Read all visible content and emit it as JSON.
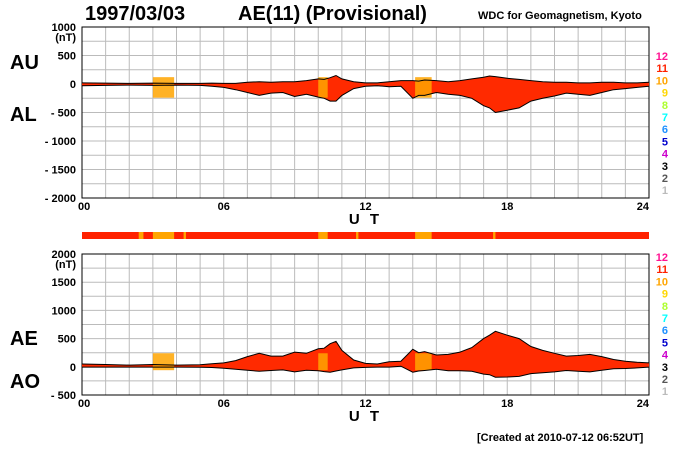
{
  "header": {
    "date": "1997/03/03",
    "title": "AE(11) (Provisional)",
    "source": "WDC for Geomagnetism, Kyoto"
  },
  "footer": {
    "created": "[Created at 2010-07-12 06:52UT]"
  },
  "legend_colors": {
    "12": "#ff1493",
    "11": "#ff2200",
    "10": "#ffa500",
    "9": "#ffd700",
    "8": "#adff2f",
    "7": "#00ffff",
    "6": "#1e90ff",
    "5": "#0000cd",
    "4": "#cc00cc",
    "3": "#000000",
    "2": "#555555",
    "1": "#bbbbbb"
  },
  "station_bar": {
    "default": 11,
    "segments": [
      {
        "start": 2.4,
        "end": 2.6,
        "stations": 10
      },
      {
        "start": 3.0,
        "end": 3.9,
        "stations": 10
      },
      {
        "start": 4.3,
        "end": 4.4,
        "stations": 10
      },
      {
        "start": 10.0,
        "end": 10.4,
        "stations": 10
      },
      {
        "start": 11.6,
        "end": 11.7,
        "stations": 10
      },
      {
        "start": 14.1,
        "end": 14.8,
        "stations": 10
      },
      {
        "start": 17.4,
        "end": 17.5,
        "stations": 10
      }
    ]
  },
  "chart_data": [
    {
      "type": "area",
      "panel": "top",
      "side_labels": [
        "AU",
        "AL"
      ],
      "xlabel": "U T",
      "ylabel": "(nT)",
      "xlim": [
        0,
        24
      ],
      "ylim": [
        -2000,
        1000
      ],
      "xticks": [
        0,
        6,
        12,
        18,
        24
      ],
      "xtick_labels": [
        "00",
        "06",
        "12",
        "18",
        "24"
      ],
      "yticks": [
        1000,
        500,
        0,
        -500,
        -1000,
        -1500,
        -2000
      ],
      "ytick_labels": [
        "1000",
        "500",
        "0",
        "- 500",
        "- 1000",
        "- 1500",
        "- 2000"
      ],
      "legend": [
        "12",
        "11",
        "10",
        "9",
        "8",
        "7",
        "6",
        "5",
        "4",
        "3",
        "2",
        "1"
      ],
      "x": [
        0,
        1,
        2,
        3,
        4,
        5,
        5.5,
        6,
        6.5,
        7,
        7.5,
        8,
        8.5,
        9,
        9.5,
        10,
        10.25,
        10.5,
        10.75,
        11,
        11.5,
        12,
        12.5,
        13,
        13.5,
        14,
        14.25,
        14.5,
        15,
        15.5,
        16,
        16.5,
        17,
        17.25,
        17.5,
        18,
        18.5,
        19,
        19.5,
        20,
        20.5,
        21,
        21.5,
        22,
        22.5,
        23,
        23.5,
        24
      ],
      "series": [
        {
          "name": "AU",
          "values": [
            20,
            15,
            10,
            15,
            10,
            10,
            15,
            10,
            10,
            30,
            40,
            30,
            40,
            40,
            60,
            90,
            80,
            110,
            150,
            90,
            40,
            20,
            20,
            40,
            60,
            60,
            50,
            70,
            60,
            40,
            60,
            90,
            120,
            140,
            130,
            100,
            80,
            60,
            40,
            30,
            30,
            20,
            20,
            30,
            30,
            20,
            20,
            30
          ]
        },
        {
          "name": "AL",
          "values": [
            -30,
            -25,
            -20,
            -25,
            -20,
            -25,
            -40,
            -60,
            -100,
            -150,
            -200,
            -160,
            -150,
            -220,
            -180,
            -230,
            -250,
            -300,
            -300,
            -200,
            -80,
            -40,
            -30,
            -50,
            -40,
            -250,
            -200,
            -200,
            -150,
            -180,
            -200,
            -250,
            -380,
            -420,
            -500,
            -460,
            -420,
            -300,
            -250,
            -210,
            -160,
            -180,
            -200,
            -150,
            -100,
            -80,
            -60,
            -40
          ]
        }
      ]
    },
    {
      "type": "area",
      "panel": "bottom",
      "side_labels": [
        "AE",
        "AO"
      ],
      "xlabel": "U T",
      "ylabel": "(nT)",
      "xlim": [
        0,
        24
      ],
      "ylim": [
        -500,
        2000
      ],
      "xticks": [
        0,
        6,
        12,
        18,
        24
      ],
      "xtick_labels": [
        "00",
        "06",
        "12",
        "18",
        "24"
      ],
      "yticks": [
        2000,
        1500,
        1000,
        500,
        0,
        -500
      ],
      "ytick_labels": [
        "2000",
        "1500",
        "1000",
        "500",
        "0",
        "- 500"
      ],
      "legend": [
        "12",
        "11",
        "10",
        "9",
        "8",
        "7",
        "6",
        "5",
        "4",
        "3",
        "2",
        "1"
      ],
      "x": [
        0,
        1,
        2,
        3,
        4,
        5,
        5.5,
        6,
        6.5,
        7,
        7.5,
        8,
        8.5,
        9,
        9.5,
        10,
        10.25,
        10.5,
        10.75,
        11,
        11.5,
        12,
        12.5,
        13,
        13.5,
        14,
        14.25,
        14.5,
        15,
        15.5,
        16,
        16.5,
        17,
        17.25,
        17.5,
        18,
        18.5,
        19,
        19.5,
        20,
        20.5,
        21,
        21.5,
        22,
        22.5,
        23,
        23.5,
        24
      ],
      "series": [
        {
          "name": "AE",
          "values": [
            50,
            40,
            30,
            40,
            30,
            35,
            55,
            70,
            110,
            180,
            240,
            190,
            190,
            260,
            240,
            320,
            330,
            410,
            450,
            290,
            120,
            60,
            50,
            90,
            100,
            310,
            250,
            270,
            210,
            220,
            260,
            340,
            500,
            560,
            630,
            560,
            500,
            360,
            290,
            240,
            190,
            200,
            220,
            180,
            130,
            100,
            80,
            70
          ]
        },
        {
          "name": "AO",
          "values": [
            -5,
            -5,
            -5,
            -5,
            -5,
            -8,
            -12,
            -25,
            -45,
            -60,
            -80,
            -65,
            -55,
            -90,
            -60,
            -70,
            -85,
            -95,
            -75,
            -55,
            -20,
            -10,
            -5,
            -5,
            10,
            -95,
            -75,
            -65,
            -45,
            -70,
            -70,
            -80,
            -130,
            -140,
            -185,
            -180,
            -170,
            -120,
            -105,
            -90,
            -65,
            -80,
            -90,
            -60,
            -35,
            -30,
            -20,
            -5
          ]
        }
      ]
    }
  ]
}
